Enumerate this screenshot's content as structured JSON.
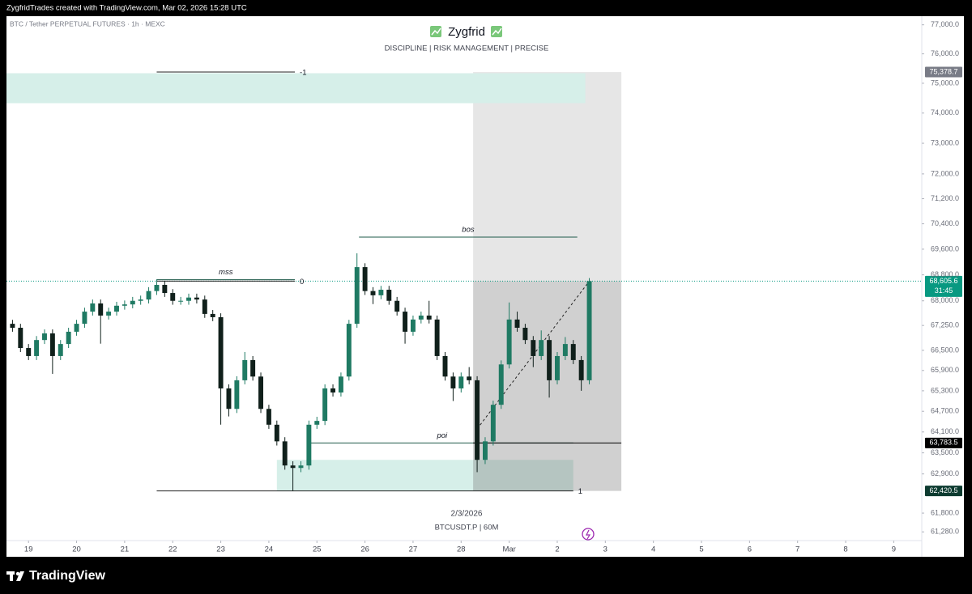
{
  "header": {
    "text": "ZygfridTrades created with TradingView.com, Mar 02, 2026 15:28 UTC"
  },
  "footer": {
    "logo": "TradingView"
  },
  "chart_data": {
    "type": "candlestick",
    "symbol": "BTC / Tether PERPETUAL FUTURES · 1h · MEXC",
    "title": "Zygfrid",
    "subtitle": "DISCIPLINE | RISK MANAGEMENT | PRECISE",
    "watermark_date": "2/3/2026",
    "watermark_symbol": "BTCUSDT.P | 60M",
    "log_scale": true,
    "up_color": "#1f7a63",
    "down_color": "#10201b",
    "x": [
      -8,
      -4,
      0,
      4,
      8,
      12,
      16,
      20,
      24,
      28,
      32,
      36,
      40,
      44,
      48,
      52,
      56,
      60,
      64,
      68,
      72,
      76,
      80,
      84,
      88,
      92,
      96,
      100,
      104,
      108,
      112,
      116,
      120,
      124,
      128,
      132,
      136,
      140,
      144,
      148,
      152,
      156,
      160,
      164,
      168,
      172,
      176,
      180,
      184,
      188,
      192,
      196,
      200,
      204,
      208,
      212,
      216,
      220,
      224,
      228,
      232,
      236,
      240,
      244,
      248,
      252,
      256,
      260,
      264,
      268,
      272,
      276,
      280
    ],
    "open": [
      67300,
      67180,
      66570,
      66330,
      66810,
      67010,
      66330,
      66690,
      67060,
      67300,
      67670,
      67920,
      67550,
      67670,
      67850,
      67890,
      68000,
      68040,
      68300,
      68490,
      68240,
      68000,
      68000,
      68100,
      68040,
      67600,
      67500,
      65370,
      64770,
      65610,
      66210,
      65720,
      64770,
      64310,
      63830,
      63140,
      63070,
      63140,
      64310,
      64420,
      65370,
      65250,
      65720,
      67300,
      69040,
      68300,
      68170,
      68340,
      68000,
      67670,
      67060,
      67430,
      67550,
      67430,
      66330,
      65720,
      65370,
      65720,
      65610,
      63300,
      63830,
      64890,
      66080,
      67430,
      67180,
      66810,
      66330,
      66810,
      65610,
      66330,
      66690,
      66210,
      65610
    ],
    "high": [
      67420,
      67300,
      66690,
      66930,
      67130,
      67130,
      66810,
      67180,
      67420,
      67790,
      68040,
      68040,
      67790,
      67970,
      68010,
      68120,
      68160,
      68420,
      68660,
      68610,
      68360,
      68120,
      68220,
      68220,
      68160,
      67720,
      67620,
      65490,
      65730,
      66450,
      66330,
      65840,
      64890,
      64430,
      63950,
      63260,
      63260,
      64430,
      64540,
      65490,
      65490,
      65840,
      67420,
      69470,
      69160,
      68420,
      68460,
      68460,
      68120,
      67790,
      67550,
      67670,
      68000,
      67550,
      66450,
      65840,
      65840,
      66000,
      65730,
      63950,
      65010,
      66200,
      67950,
      67670,
      67300,
      66930,
      67100,
      66930,
      66450,
      66900,
      66810,
      66330,
      68700
    ],
    "low": [
      67060,
      66450,
      66210,
      66210,
      66690,
      65800,
      66210,
      66570,
      66940,
      67180,
      67550,
      66700,
      67430,
      67550,
      67730,
      67770,
      67880,
      67920,
      68180,
      68120,
      67880,
      67880,
      67880,
      67920,
      67480,
      67380,
      64310,
      64550,
      64650,
      65490,
      65600,
      64650,
      64190,
      63710,
      63020,
      62420,
      62950,
      63020,
      64190,
      64300,
      65130,
      65130,
      65600,
      67180,
      68180,
      67900,
      68050,
      67880,
      67550,
      66700,
      66940,
      67310,
      67310,
      66210,
      65600,
      65000,
      65250,
      65490,
      62950,
      63180,
      63710,
      64770,
      65960,
      67060,
      66690,
      66000,
      66210,
      65100,
      65490,
      66210,
      66090,
      65300,
      65490
    ],
    "close": [
      67180,
      66570,
      66330,
      66810,
      67010,
      66330,
      66690,
      67060,
      67300,
      67670,
      67920,
      67550,
      67670,
      67850,
      67890,
      68000,
      68040,
      68300,
      68490,
      68240,
      68000,
      68000,
      68100,
      68040,
      67600,
      67500,
      65370,
      64770,
      65610,
      66210,
      65720,
      64770,
      64310,
      63830,
      63140,
      63070,
      63140,
      64310,
      64420,
      65370,
      65250,
      65720,
      67300,
      69040,
      68300,
      68170,
      68340,
      68000,
      67670,
      67060,
      67430,
      67550,
      67430,
      66330,
      65720,
      65370,
      65720,
      65610,
      63300,
      63830,
      64890,
      66080,
      67430,
      67180,
      66810,
      66330,
      66810,
      65610,
      66330,
      66690,
      66210,
      65610,
      68605.6
    ],
    "xlim": [
      -11,
      446
    ],
    "ylim": [
      61040,
      77300
    ],
    "xticks": [
      {
        "value": 0,
        "label": "19"
      },
      {
        "value": 24,
        "label": "20"
      },
      {
        "value": 48,
        "label": "21"
      },
      {
        "value": 72,
        "label": "22"
      },
      {
        "value": 96,
        "label": "23"
      },
      {
        "value": 120,
        "label": "24"
      },
      {
        "value": 144,
        "label": "25"
      },
      {
        "value": 168,
        "label": "26"
      },
      {
        "value": 192,
        "label": "27"
      },
      {
        "value": 216,
        "label": "28"
      },
      {
        "value": 240,
        "label": "Mar"
      },
      {
        "value": 264,
        "label": "2"
      },
      {
        "value": 288,
        "label": "3"
      },
      {
        "value": 312,
        "label": "4"
      },
      {
        "value": 336,
        "label": "5"
      },
      {
        "value": 360,
        "label": "6"
      },
      {
        "value": 384,
        "label": "7"
      },
      {
        "value": 408,
        "label": "8"
      },
      {
        "value": 432,
        "label": "9"
      }
    ],
    "yticks": [
      {
        "value": 77000,
        "label": "77,000.0"
      },
      {
        "value": 76000,
        "label": "76,000.0"
      },
      {
        "value": 75000,
        "label": "75,000.0"
      },
      {
        "value": 74000,
        "label": "74,000.0"
      },
      {
        "value": 73000,
        "label": "73,000.0"
      },
      {
        "value": 72000,
        "label": "72,000.0"
      },
      {
        "value": 71200,
        "label": "71,200.0"
      },
      {
        "value": 70400,
        "label": "70,400.0"
      },
      {
        "value": 69600,
        "label": "69,600.0"
      },
      {
        "value": 68800,
        "label": "68,800.0"
      },
      {
        "value": 68000,
        "label": "68,000.0"
      },
      {
        "value": 67250,
        "label": "67,250.0"
      },
      {
        "value": 66500,
        "label": "66,500.0"
      },
      {
        "value": 65900,
        "label": "65,900.0"
      },
      {
        "value": 65300,
        "label": "65,300.0"
      },
      {
        "value": 64700,
        "label": "64,700.0"
      },
      {
        "value": 64100,
        "label": "64,100.0"
      },
      {
        "value": 63500,
        "label": "63,500.0"
      },
      {
        "value": 62900,
        "label": "62,900.0"
      },
      {
        "value": 61800,
        "label": "61,800.0"
      },
      {
        "value": 61280,
        "label": "61,280.0"
      }
    ],
    "zones": [
      {
        "x": [
          222,
          296
        ],
        "y": [
          68605.6,
          75378.7
        ],
        "color": "#e6e6e6"
      },
      {
        "x": [
          -11,
          278
        ],
        "y": [
          74330,
          75340
        ],
        "color": "#d6efe9"
      },
      {
        "x": [
          124,
          272
        ],
        "y": [
          62420.5,
          63300
        ],
        "color": "#d6efe9"
      },
      {
        "x": [
          222,
          296
        ],
        "y": [
          62420.5,
          68605.6
        ],
        "color": "rgba(120,120,120,0.35)"
      }
    ],
    "lines": [
      {
        "label": "-1",
        "x": [
          64,
          133
        ],
        "y": 75378.7,
        "color": "#222222"
      },
      {
        "label": "0",
        "x": [
          64,
          133
        ],
        "y": 68605.6,
        "color": "#222222"
      },
      {
        "label": "1",
        "x": [
          64,
          272
        ],
        "y": 62420.5,
        "color": "#222222"
      },
      {
        "label": "mss",
        "x": [
          64,
          133
        ],
        "y": 68650,
        "color": "#1e5a4a"
      },
      {
        "label": "bos",
        "x": [
          165,
          274
        ],
        "y": 69980,
        "color": "#1e5a4a"
      },
      {
        "label": "poi",
        "x": [
          141,
          272
        ],
        "y": 63783.5,
        "color": "#1e5a4a"
      }
    ],
    "position_line": {
      "x": [
        222,
        296
      ],
      "y": 63783.5,
      "color": "#000000"
    },
    "trend_line": {
      "x": [
        224,
        280
      ],
      "y": [
        64190,
        68605.6
      ],
      "color": "#222222"
    },
    "price_labels": [
      {
        "value": 75378.7,
        "label": "75,378.7",
        "color": "#787b86"
      },
      {
        "value": 68605.6,
        "label": "68,605.6",
        "color": "#089981",
        "extra": "31:45"
      },
      {
        "value": 63783.5,
        "label": "63,783.5",
        "color": "#000000"
      },
      {
        "value": 62420.5,
        "label": "62,420.5",
        "color": "#0d3b30"
      }
    ]
  }
}
